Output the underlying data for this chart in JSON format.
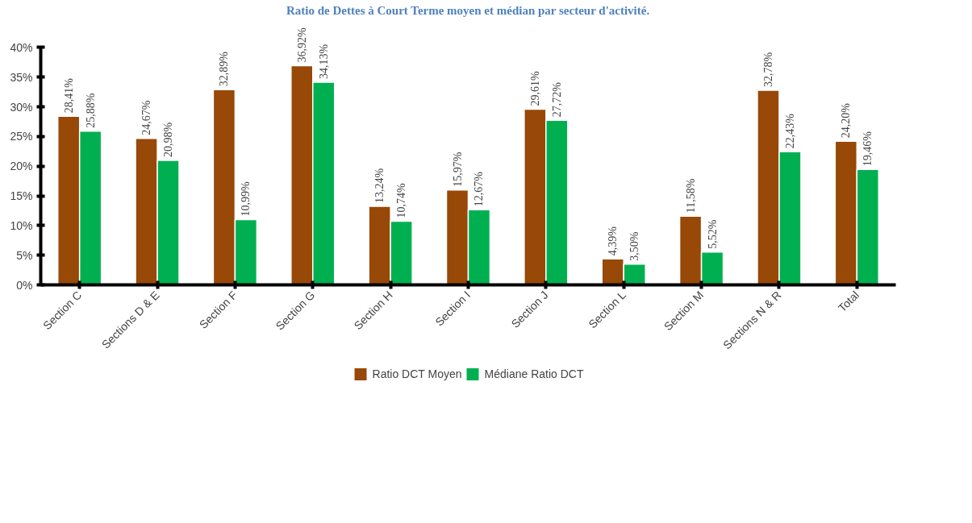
{
  "chart_data": {
    "type": "bar",
    "title": "Ratio de Dettes à Court Terme moyen et médian par secteur d'activité.",
    "categories": [
      "Section C",
      "Sections D & E",
      "Section F",
      "Section G",
      "Section H",
      "Section I",
      "Section J",
      "Section L",
      "Section M",
      "Sections N & R",
      "Total"
    ],
    "series": [
      {
        "name": "Ratio DCT Moyen",
        "color": "#984807",
        "values": [
          28.41,
          24.67,
          32.89,
          36.92,
          13.24,
          15.97,
          29.61,
          4.39,
          11.58,
          32.78,
          24.2
        ],
        "value_labels": [
          "28,41%",
          "24,67%",
          "32,89%",
          "36,92%",
          "13,24%",
          "15,97%",
          "29,61%",
          "4,39%",
          "11,58%",
          "32,78%",
          "24,20%"
        ]
      },
      {
        "name": "Médiane Ratio DCT",
        "color": "#00b050",
        "values": [
          25.88,
          20.98,
          10.99,
          34.13,
          10.74,
          12.67,
          27.72,
          3.5,
          5.52,
          22.43,
          19.46
        ],
        "value_labels": [
          "25,88%",
          "20,98%",
          "10,99%",
          "34,13%",
          "10,74%",
          "12,67%",
          "27,72%",
          "3,50%",
          "5,52%",
          "22,43%",
          "19,46%"
        ]
      }
    ],
    "ylim": [
      0,
      40
    ],
    "yticks": [
      {
        "value": 0,
        "label": "0%"
      },
      {
        "value": 5,
        "label": "5%"
      },
      {
        "value": 10,
        "label": "10%"
      },
      {
        "value": 15,
        "label": "15%"
      },
      {
        "value": 20,
        "label": "20%"
      },
      {
        "value": 25,
        "label": "25%"
      },
      {
        "value": 30,
        "label": "30%"
      },
      {
        "value": 35,
        "label": "35%"
      },
      {
        "value": 40,
        "label": "40%"
      }
    ],
    "grid": false,
    "legend": "bottom"
  }
}
